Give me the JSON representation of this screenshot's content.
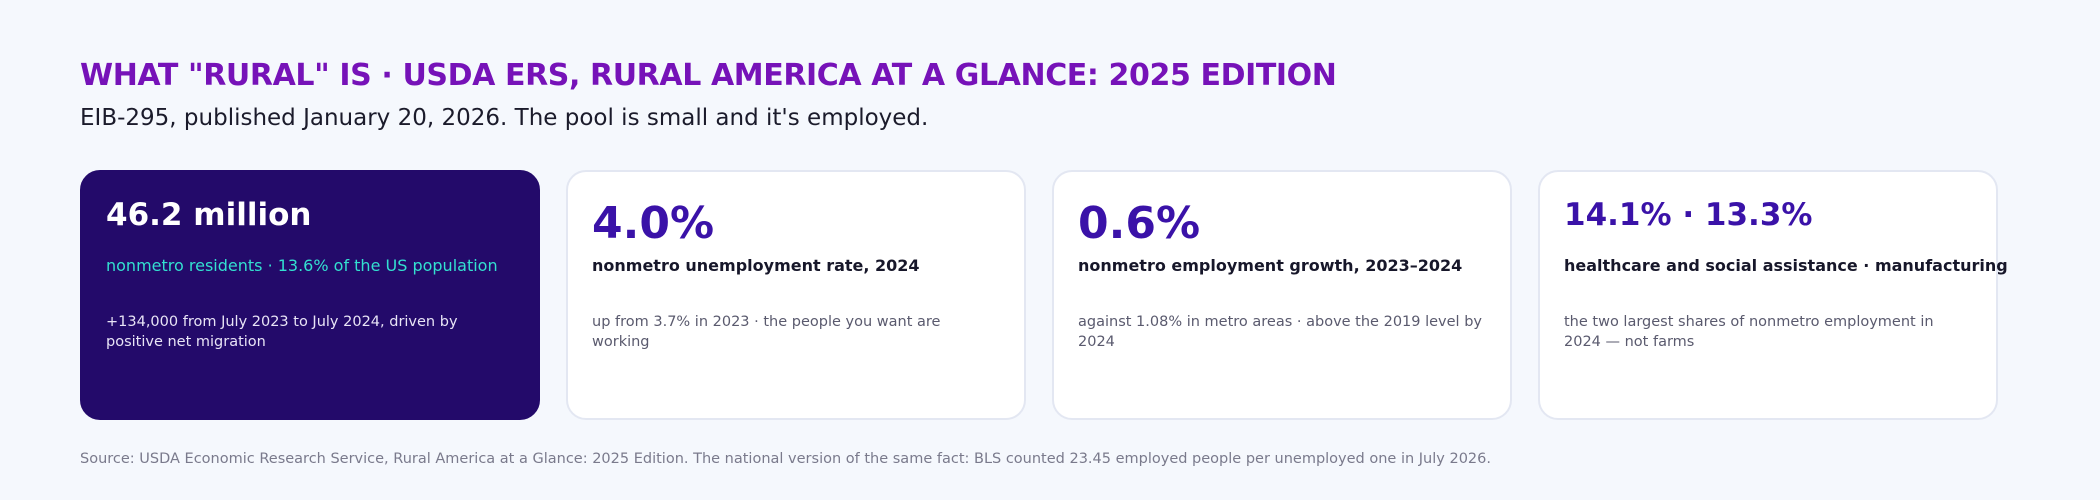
{
  "header": {
    "title": "WHAT \"RURAL\" IS · USDA ERS, RURAL AMERICA AT A GLANCE: 2025 EDITION",
    "subtitle": "EIB-295, published January 20, 2026. The pool is small and it's employed."
  },
  "colors": {
    "title": "#7612b8",
    "featured_card_bg": "#230a6a",
    "featured_label": "#33e0d0",
    "value": "#3a12a8",
    "page_bg": "#f5f8fd"
  },
  "cards": [
    {
      "value": "46.2 million",
      "label": "nonmetro residents · 13.6% of the US population",
      "note": "+134,000 from July 2023 to July 2024, driven by positive net migration",
      "featured": true
    },
    {
      "value": "4.0%",
      "label": "nonmetro unemployment rate, 2024",
      "note": "up from 3.7% in 2023 · the people you want are working",
      "featured": false
    },
    {
      "value": "0.6%",
      "label": "nonmetro employment growth, 2023–2024",
      "note": "against 1.08% in metro areas · above the 2019 level by 2024",
      "featured": false
    },
    {
      "value": "14.1% · 13.3%",
      "label": "healthcare and social assistance · manufacturing",
      "note": "the two largest shares of nonmetro employment in 2024 — not farms",
      "featured": false
    }
  ],
  "footer": {
    "source": "Source: USDA Economic Research Service, Rural America at a Glance: 2025 Edition. The national version of the same fact: BLS counted 23.45 employed people per unemployed one in July 2026."
  }
}
